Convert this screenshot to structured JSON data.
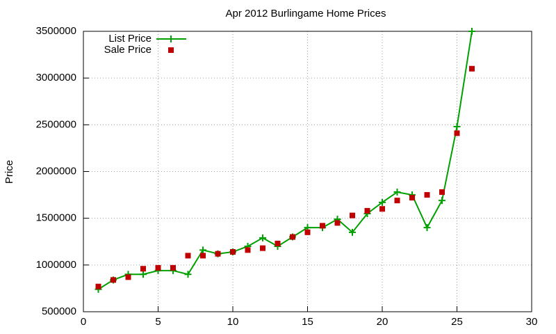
{
  "chart_data": {
    "type": "line",
    "title": "Apr 2012 Burlingame Home Prices",
    "y_label": "Price",
    "x": [
      1,
      2,
      3,
      4,
      5,
      6,
      7,
      8,
      9,
      10,
      11,
      12,
      13,
      14,
      15,
      16,
      17,
      18,
      19,
      20,
      21,
      22,
      23,
      24,
      25,
      26
    ],
    "series": [
      {
        "name": "List Price",
        "color": "#00a000",
        "mode": "linespoints",
        "values": [
          740000,
          840000,
          900000,
          900000,
          940000,
          940000,
          900000,
          1160000,
          1120000,
          1140000,
          1200000,
          1290000,
          1200000,
          1300000,
          1400000,
          1400000,
          1490000,
          1350000,
          1550000,
          1670000,
          1780000,
          1750000,
          1400000,
          1690000,
          2480000,
          3500000
        ]
      },
      {
        "name": "Sale Price",
        "color": "#c00000",
        "mode": "points",
        "values": [
          770000,
          840000,
          870000,
          960000,
          970000,
          970000,
          1100000,
          1100000,
          1120000,
          1140000,
          1160000,
          1180000,
          1230000,
          1300000,
          1350000,
          1420000,
          1450000,
          1530000,
          1580000,
          1600000,
          1690000,
          1720000,
          1750000,
          1780000,
          2410000,
          3100000
        ]
      }
    ],
    "xlim": [
      0,
      30
    ],
    "xticks": [
      0,
      5,
      10,
      15,
      20,
      25,
      30
    ],
    "ylim": [
      500000,
      3500000
    ],
    "yticks": [
      500000,
      1000000,
      1500000,
      2000000,
      2500000,
      3000000,
      3500000
    ],
    "grid": true,
    "legend": "top-left"
  }
}
